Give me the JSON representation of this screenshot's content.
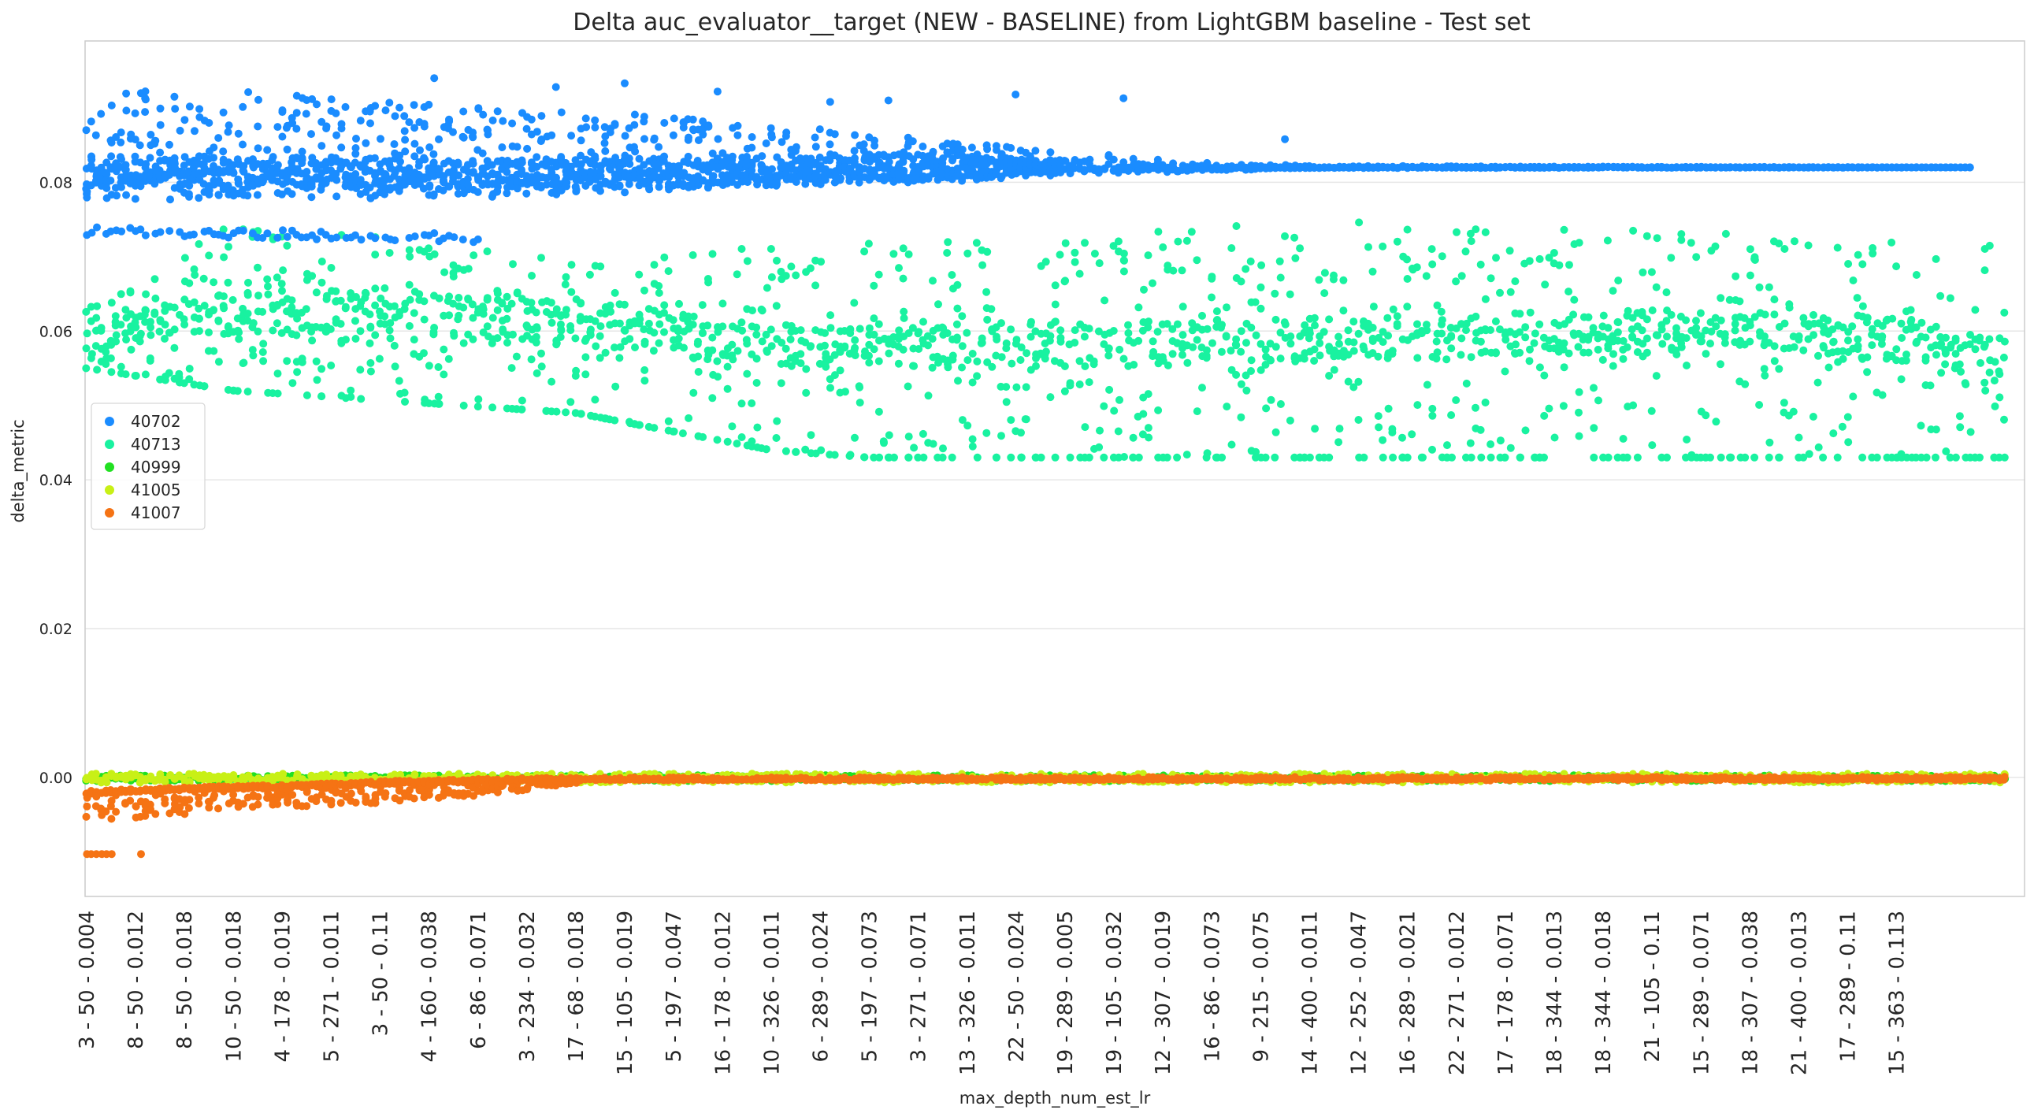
{
  "chart_data": {
    "type": "scatter",
    "title": "Delta auc_evaluator__target (NEW - BASELINE) from LightGBM baseline - Test set",
    "xlabel": "max_depth_num_est_lr",
    "ylabel": "delta_metric",
    "ylim": [
      -0.016,
      0.099
    ],
    "yticks": [
      0.0,
      0.02,
      0.04,
      0.06,
      0.08
    ],
    "ytick_labels": [
      "0.00",
      "0.02",
      "0.04",
      "0.06",
      "0.08"
    ],
    "grid": "horizontal",
    "legend_position": "center-left",
    "x_count": 392,
    "x_tick_every": 10,
    "x_tick_labels": [
      "3 - 50 - 0.004",
      "8 - 50 - 0.012",
      "8 - 50 - 0.018",
      "10 - 50 - 0.018",
      "4 - 178 - 0.019",
      "5 - 271 - 0.011",
      "3 - 50 - 0.11",
      "4 - 160 - 0.038",
      "6 - 86 - 0.071",
      "3 - 234 - 0.032",
      "17 - 68 - 0.018",
      "15 - 105 - 0.019",
      "5 - 197 - 0.047",
      "16 - 178 - 0.012",
      "10 - 326 - 0.011",
      "6 - 289 - 0.024",
      "5 - 197 - 0.073",
      "3 - 271 - 0.071",
      "13 - 326 - 0.011",
      "22 - 50 - 0.024",
      "19 - 289 - 0.005",
      "19 - 105 - 0.032",
      "12 - 307 - 0.019",
      "16 - 86 - 0.073",
      "9 - 215 - 0.075",
      "14 - 400 - 0.011",
      "12 - 252 - 0.047",
      "16 - 289 - 0.021",
      "22 - 271 - 0.012",
      "17 - 178 - 0.071",
      "18 - 344 - 0.013",
      "18 - 344 - 0.018",
      "21 - 105 - 0.11",
      "15 - 289 - 0.071",
      "18 - 307 - 0.038",
      "21 - 400 - 0.013",
      "17 - 289 - 0.11",
      "15 - 363 - 0.113"
    ],
    "series": [
      {
        "name": "40702",
        "color": "#1a8cff",
        "trend": {
          "x": [
            0,
            40,
            80,
            120,
            160,
            200,
            392
          ],
          "y": [
            0.0815,
            0.0815,
            0.081,
            0.0815,
            0.0818,
            0.082,
            0.082
          ]
        },
        "spread_max": {
          "x": [
            0,
            40,
            80,
            120,
            200,
            250,
            392
          ],
          "y": [
            0.0112,
            0.0105,
            0.009,
            0.0075,
            0.002,
            0.0002,
            0.0
          ]
        },
        "lower_band": {
          "x": [
            0,
            80
          ],
          "y": [
            0.0735,
            0.0725
          ]
        },
        "top_outliers": [
          {
            "x": 71,
            "y": 0.094
          },
          {
            "x": 110,
            "y": 0.0933
          },
          {
            "x": 96,
            "y": 0.0928
          },
          {
            "x": 129,
            "y": 0.0922
          },
          {
            "x": 190,
            "y": 0.0918
          },
          {
            "x": 212,
            "y": 0.0913
          },
          {
            "x": 245,
            "y": 0.0858
          },
          {
            "x": 164,
            "y": 0.091
          },
          {
            "x": 152,
            "y": 0.0908
          }
        ],
        "x_range": [
          0,
          385
        ]
      },
      {
        "name": "40713",
        "color": "#19f2a0",
        "trend": {
          "x": [
            0,
            20,
            60,
            100,
            140,
            200,
            260,
            320,
            370,
            392
          ],
          "y": [
            0.059,
            0.062,
            0.063,
            0.061,
            0.058,
            0.058,
            0.059,
            0.06,
            0.059,
            0.056
          ]
        },
        "upper_edge": {
          "x": [
            0,
            30,
            100,
            160,
            200,
            260,
            340,
            385
          ],
          "y": [
            0.063,
            0.075,
            0.07,
            0.072,
            0.073,
            0.075,
            0.073,
            0.072
          ]
        },
        "lower_edge": {
          "x": [
            0,
            30,
            100,
            140,
            160,
            385
          ],
          "y": [
            0.055,
            0.052,
            0.049,
            0.044,
            0.043,
            0.043
          ]
        },
        "x_range": [
          0,
          392
        ]
      },
      {
        "name": "40999",
        "color": "#22e022",
        "band": [
          -0.0005,
          0.0003
        ],
        "x_range": [
          0,
          392
        ]
      },
      {
        "name": "41005",
        "color": "#c8f016",
        "band": [
          -0.0007,
          0.0005
        ],
        "x_range": [
          0,
          392
        ]
      },
      {
        "name": "41007",
        "color": "#f57314",
        "trend": {
          "x": [
            0,
            20,
            40,
            60,
            80,
            100,
            392
          ],
          "y": [
            -0.002,
            -0.0015,
            -0.0012,
            -0.0007,
            -0.0004,
            -0.0002,
            -0.0001
          ]
        },
        "lower_edge": {
          "x": [
            0,
            20,
            40,
            60,
            80,
            100
          ],
          "y": [
            -0.006,
            -0.005,
            -0.004,
            -0.0035,
            -0.0025,
            -0.0008
          ]
        },
        "outliers": [
          {
            "x": 0,
            "y": -0.0103
          },
          {
            "x": 1,
            "y": -0.0103
          },
          {
            "x": 2,
            "y": -0.0103
          },
          {
            "x": 3,
            "y": -0.0103
          },
          {
            "x": 4,
            "y": -0.0103
          },
          {
            "x": 5,
            "y": -0.0103
          },
          {
            "x": 11,
            "y": -0.0103
          }
        ],
        "x_range": [
          0,
          392
        ]
      }
    ]
  }
}
